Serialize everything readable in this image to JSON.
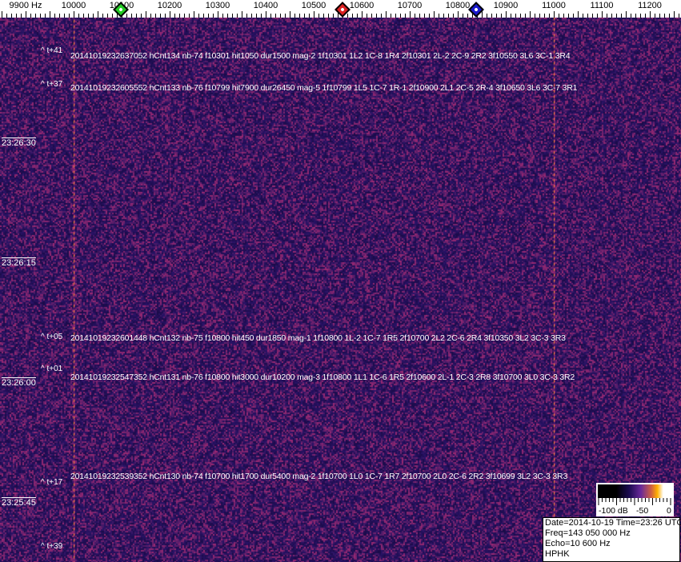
{
  "axis": {
    "unit_label": "9900 Hz",
    "freq_labels": [
      "10000",
      "10100",
      "10200",
      "10300",
      "10400",
      "10500",
      "10600",
      "10700",
      "10800",
      "10900",
      "11000",
      "11100",
      "11200"
    ],
    "markers": [
      {
        "name": "green-marker",
        "freq_hz": 10098,
        "color": "#22cc22"
      },
      {
        "name": "red-marker",
        "freq_hz": 10560,
        "color": "#dd2222"
      },
      {
        "name": "blue-marker",
        "freq_hz": 10838,
        "color": "#1a1acc"
      }
    ]
  },
  "waterfall": {
    "colors": {
      "background": "#2a1a6a",
      "line": "#ff9a20"
    },
    "bright_lines_hz": [
      10000,
      11000
    ],
    "time_labels": [
      "23:26:30",
      "23:26:15",
      "23:26:00",
      "23:25:45"
    ],
    "events": [
      {
        "tag": "^ t+41",
        "text": "20141019232637052 hCnt134 nb-74 f10301 hit1050 dur1500 mag-2 1f10301 1L2 1C-8 1R4 2f10301 2L-2 2C-9 2R2 3f10550 3L6 3C-1 3R4"
      },
      {
        "tag": "^ t+37",
        "text": "20141019232605552 hCnt133 nb-76 f10799 hit7900 dur26450 mag-5 1f10799 1L5 1C-7 1R-1 2f10900 2L1 2C-5 2R-4 3f10650 3L6 3C-7 3R1"
      },
      {
        "tag": "^ t+05",
        "text": "20141019232601448 hCnt132 nb-75 f10800 hit450 dur1850 mag-1 1f10800 1L-2 1C-7 1R5 2f10700 2L2 2C-6 2R4 3f10350 3L2 3C-3 3R3"
      },
      {
        "tag": "^ t+01",
        "text": "20141019232547352 hCnt131 nb-76 f10800 hit3000 dur10200 mag-3 1f10800 1L1 1C-6 1R5 2f10600 2L-1 2C-3 2R8 3f10700 3L0 3C-3 3R2"
      },
      {
        "tag": "^ t+17",
        "text": "20141019232539352 hCnt130 nb-74 f10700 hit1700 dur5400 mag-2 1f10700 1L0 1C-7 1R7 2f10700 2L0 2C-6 2R2 3f10699 3L2 3C-3 3R3"
      },
      {
        "tag": "^ t+39",
        "text": ""
      }
    ]
  },
  "scale": {
    "labels": [
      "-100 dB",
      "-50",
      "0"
    ]
  },
  "info": {
    "line1": "Date=2014-10-19 Time=23:26 UTC",
    "line2": "Freq=143 050 000 Hz",
    "line3": "Echo=10 600 Hz",
    "line4": "HPHK"
  }
}
